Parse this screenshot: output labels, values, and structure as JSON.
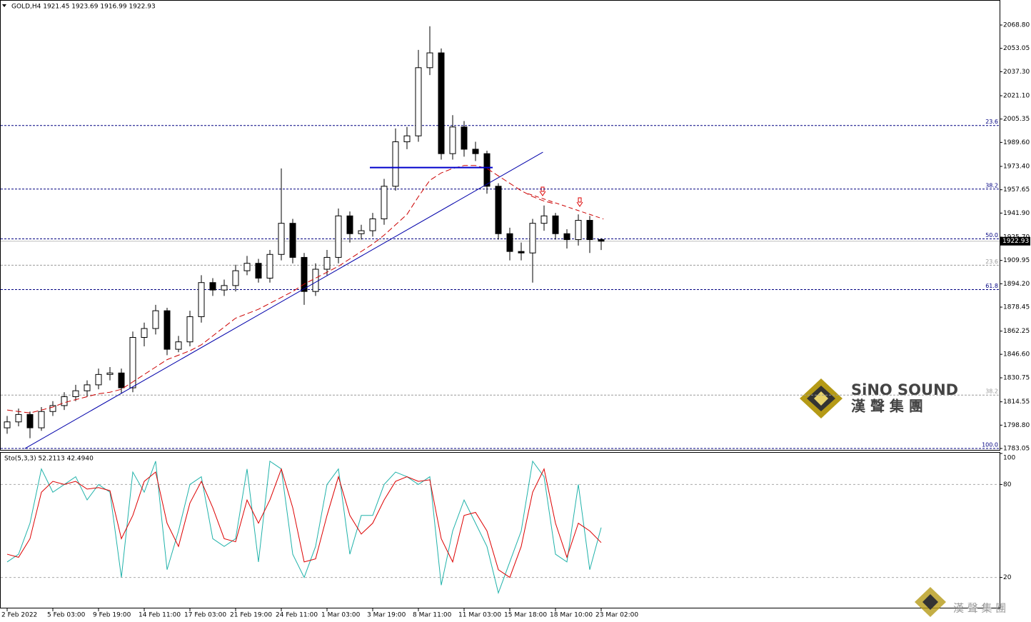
{
  "chart_data": [
    {
      "type": "candlestick",
      "title": "GOLD,H4  1921.45 1923.69 1916.99 1922.93",
      "xticks": [
        {
          "value": 0,
          "label": "2 Feb 2022"
        },
        {
          "value": 4,
          "label": "5 Feb 03:00"
        },
        {
          "value": 8,
          "label": "9 Feb 19:00"
        },
        {
          "value": 12,
          "label": "14 Feb 11:00"
        },
        {
          "value": 16,
          "label": "17 Feb 03:00"
        },
        {
          "value": 20,
          "label": "21 Feb 19:00"
        },
        {
          "value": 24,
          "label": "24 Feb 11:00"
        },
        {
          "value": 28,
          "label": "1 Mar 03:00"
        },
        {
          "value": 32,
          "label": "3 Mar 19:00"
        },
        {
          "value": 36,
          "label": "8 Mar 11:00"
        },
        {
          "value": 40,
          "label": "11 Mar 03:00"
        },
        {
          "value": 44,
          "label": "15 Mar 18:00"
        },
        {
          "value": 48,
          "label": "18 Mar 10:00"
        },
        {
          "value": 52,
          "label": "23 Mar 02:00"
        }
      ],
      "ylim": [
        1782.1,
        2085.2
      ],
      "yticks": [
        {
          "value": 2068.8,
          "label": "2068.80"
        },
        {
          "value": 2053.05,
          "label": "2053.05"
        },
        {
          "value": 2037.3,
          "label": "2037.30"
        },
        {
          "value": 2021.1,
          "label": "2021.10"
        },
        {
          "value": 2005.35,
          "label": "2005.35"
        },
        {
          "value": 1989.6,
          "label": "1989.60"
        },
        {
          "value": 1973.4,
          "label": "1973.40"
        },
        {
          "value": 1957.65,
          "label": "1957.65"
        },
        {
          "value": 1941.9,
          "label": "1941.90"
        },
        {
          "value": 1925.7,
          "label": "1925.70"
        },
        {
          "value": 1909.95,
          "label": "1909.95"
        },
        {
          "value": 1894.2,
          "label": "1894.20"
        },
        {
          "value": 1878.45,
          "label": "1878.45"
        },
        {
          "value": 1862.25,
          "label": "1862.25"
        },
        {
          "value": 1846.6,
          "label": "1846.60"
        },
        {
          "value": 1830.75,
          "label": "1830.75"
        },
        {
          "value": 1814.55,
          "label": "1814.55"
        },
        {
          "value": 1798.8,
          "label": "1798.80"
        },
        {
          "value": 1783.05,
          "label": "1783.05"
        }
      ],
      "open": [
        1797,
        1801,
        1806,
        1797,
        1808,
        1812,
        1818,
        1822,
        1826,
        1833,
        1834,
        1824,
        1858,
        1864,
        1876,
        1850,
        1855,
        1872,
        1895,
        1890,
        1893,
        1903,
        1908,
        1898,
        1914,
        1935,
        1912,
        1889,
        1904,
        1912,
        1940,
        1928,
        1930,
        1938,
        1960,
        1990,
        1994,
        2040,
        2050,
        1982,
        2000,
        1985,
        1982,
        1960,
        1928,
        1916,
        1915,
        1935,
        1940,
        1928,
        1924,
        1937,
        1924
      ],
      "high": [
        1805,
        1810,
        1808,
        1811,
        1815,
        1821,
        1826,
        1829,
        1837,
        1838,
        1837,
        1862,
        1868,
        1880,
        1878,
        1859,
        1876,
        1900,
        1898,
        1897,
        1907,
        1913,
        1911,
        1917,
        1972,
        1938,
        1915,
        1908,
        1917,
        1945,
        1943,
        1934,
        1942,
        1965,
        1999,
        2000,
        2052,
        2068,
        2053,
        2008,
        2004,
        1990,
        1984,
        1962,
        1932,
        1922,
        1938,
        1947,
        1942,
        1931,
        1941,
        1940,
        1925
      ],
      "low": [
        1793,
        1798,
        1790,
        1795,
        1805,
        1809,
        1815,
        1818,
        1823,
        1829,
        1820,
        1821,
        1852,
        1860,
        1846,
        1848,
        1852,
        1868,
        1886,
        1886,
        1889,
        1900,
        1895,
        1895,
        1910,
        1908,
        1880,
        1886,
        1900,
        1908,
        1922,
        1924,
        1926,
        1934,
        1957,
        1985,
        1990,
        2035,
        1978,
        1978,
        1980,
        1977,
        1955,
        1924,
        1910,
        1910,
        1895,
        1930,
        1924,
        1918,
        1920,
        1915,
        1916.99
      ],
      "close": [
        1801,
        1806,
        1797,
        1808,
        1812,
        1818,
        1822,
        1826,
        1833,
        1834,
        1824,
        1858,
        1864,
        1876,
        1850,
        1855,
        1872,
        1895,
        1890,
        1893,
        1903,
        1908,
        1898,
        1914,
        1935,
        1912,
        1889,
        1904,
        1912,
        1940,
        1928,
        1930,
        1938,
        1960,
        1990,
        1994,
        2040,
        2050,
        1982,
        2000,
        1985,
        1982,
        1960,
        1928,
        1916,
        1915,
        1935,
        1940,
        1928,
        1924,
        1937,
        1924,
        1922.93
      ],
      "ma": {
        "color": "#cc0000",
        "values": [
          1809,
          1808,
          1807,
          1809,
          1811,
          1814,
          1816,
          1818,
          1820,
          1821,
          1823,
          1828,
          1833,
          1838,
          1843,
          1846,
          1849,
          1853,
          1859,
          1865,
          1871,
          1874,
          1877,
          1881,
          1885,
          1889,
          1894,
          1898,
          1902,
          1906,
          1911,
          1916,
          1921,
          1927,
          1934,
          1941,
          1953,
          1964,
          1969,
          1972,
          1974,
          1974,
          1972,
          1967,
          1962,
          1957,
          1953,
          1950,
          1948,
          null,
          null,
          null,
          null
        ]
      },
      "trendlines": [
        {
          "color": "#0000aa",
          "x": [
            1.56,
            46.9
          ],
          "y": [
            1783.05,
            1983
          ]
        },
        {
          "color": "#0000cc",
          "x": [
            31.75,
            42.5
          ],
          "y": [
            1972.6,
            1972.6
          ]
        },
        {
          "color": "#cc0000",
          "x": [
            45.6,
            52.2
          ],
          "y": [
            1955,
            1937.9
          ]
        }
      ],
      "fib_levels": [
        {
          "label": "23.6",
          "price": 2001.0,
          "color": "#000080"
        },
        {
          "label": "38.2",
          "price": 1958.1,
          "color": "#000080"
        },
        {
          "label": "50.0",
          "price": 1924.5,
          "color": "#000080"
        },
        {
          "label": "23.6",
          "price": 1906.7,
          "color": "#999999"
        },
        {
          "label": "61.8",
          "price": 1890.3,
          "color": "#000080"
        },
        {
          "label": "38.2",
          "price": 1819.1,
          "color": "#999999"
        },
        {
          "label": "100.0",
          "price": 1783.05,
          "color": "#000080"
        }
      ],
      "current_price": {
        "value": 1922.93,
        "label": "1922.93"
      }
    },
    {
      "type": "line",
      "title": "Sto(5,3,3) 52.2113 42.4940",
      "ylim": [
        0,
        100
      ],
      "yticks": [
        20,
        80,
        100
      ],
      "series": [
        {
          "color": "#20b2aa",
          "values": [
            30,
            35,
            55,
            90,
            75,
            80,
            85,
            70,
            80,
            75,
            20,
            88,
            75,
            95,
            25,
            50,
            80,
            85,
            45,
            40,
            45,
            90,
            30,
            95,
            90,
            35,
            20,
            40,
            80,
            90,
            35,
            60,
            60,
            80,
            88,
            85,
            80,
            85,
            15,
            50,
            70,
            55,
            40,
            10,
            30,
            50,
            95,
            85,
            35,
            30,
            80,
            25,
            52.2113
          ]
        },
        {
          "color": "#dd0000",
          "values": [
            35,
            33,
            45,
            75,
            82,
            80,
            82,
            77,
            78,
            76,
            45,
            60,
            82,
            88,
            55,
            40,
            68,
            82,
            65,
            45,
            43,
            70,
            55,
            70,
            90,
            65,
            30,
            32,
            60,
            85,
            60,
            48,
            55,
            70,
            82,
            85,
            82,
            83,
            45,
            30,
            60,
            62,
            50,
            25,
            20,
            40,
            75,
            90,
            55,
            33,
            55,
            50,
            42.494
          ]
        }
      ]
    }
  ],
  "watermark": {
    "name": "SiNO SOUND",
    "chinese": "漢 聲 集 團",
    "corner": "漢 聲 集 團"
  }
}
